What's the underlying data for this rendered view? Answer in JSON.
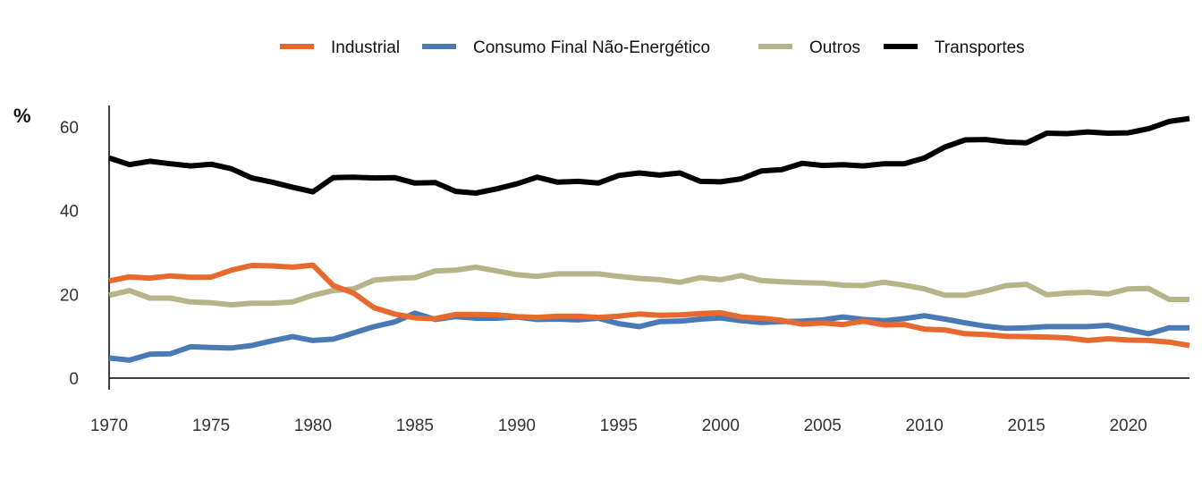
{
  "chart_data": {
    "type": "line",
    "title": "",
    "xlabel": "",
    "ylabel": "%",
    "x": [
      1970,
      1971,
      1972,
      1973,
      1974,
      1975,
      1976,
      1977,
      1978,
      1979,
      1980,
      1981,
      1982,
      1983,
      1984,
      1985,
      1986,
      1987,
      1988,
      1989,
      1990,
      1991,
      1992,
      1993,
      1994,
      1995,
      1996,
      1997,
      1998,
      1999,
      2000,
      2001,
      2002,
      2003,
      2004,
      2005,
      2006,
      2007,
      2008,
      2009,
      2010,
      2011,
      2012,
      2013,
      2014,
      2015,
      2016,
      2017,
      2018,
      2019,
      2020,
      2021,
      2022,
      2023
    ],
    "xticks": [
      "1970",
      "1975",
      "1980",
      "1985",
      "1990",
      "1995",
      "2000",
      "2005",
      "2010",
      "2015",
      "2020"
    ],
    "yticks": [
      "0",
      "20",
      "40",
      "60"
    ],
    "ylim": [
      0,
      65
    ],
    "grid": false,
    "legend_position": "top",
    "series": [
      {
        "name": "Industrial",
        "color": "#e8692e",
        "values": [
          23.2,
          24.2,
          23.9,
          24.4,
          24.1,
          24.1,
          25.8,
          26.9,
          26.8,
          26.5,
          27.0,
          22.1,
          20.3,
          16.8,
          15.3,
          14.4,
          14.2,
          15.2,
          15.2,
          15.1,
          14.7,
          14.5,
          14.8,
          14.8,
          14.5,
          14.8,
          15.3,
          15.0,
          15.1,
          15.4,
          15.6,
          14.6,
          14.3,
          13.8,
          12.9,
          13.2,
          12.8,
          13.6,
          12.7,
          12.8,
          11.7,
          11.5,
          10.6,
          10.4,
          10.0,
          9.9,
          9.8,
          9.6,
          9.0,
          9.4,
          9.1,
          9.0,
          8.6,
          7.8
        ]
      },
      {
        "name": "Consumo Final Não-Energético",
        "color": "#4a7ab5",
        "values": [
          4.8,
          4.3,
          5.7,
          5.8,
          7.5,
          7.3,
          7.2,
          7.8,
          8.9,
          9.9,
          9.0,
          9.3,
          10.8,
          12.3,
          13.4,
          15.5,
          14.0,
          14.7,
          14.3,
          14.3,
          14.6,
          14.0,
          14.1,
          13.9,
          14.3,
          13.0,
          12.3,
          13.5,
          13.6,
          14.1,
          14.4,
          13.7,
          13.3,
          13.5,
          13.6,
          13.9,
          14.6,
          14.0,
          13.7,
          14.2,
          14.9,
          14.1,
          13.2,
          12.4,
          11.9,
          12.0,
          12.3,
          12.3,
          12.3,
          12.6,
          11.6,
          10.6,
          12.0,
          12.0
        ]
      },
      {
        "name": "Outros",
        "color": "#b8b48a",
        "values": [
          19.8,
          20.9,
          19.1,
          19.1,
          18.2,
          18.0,
          17.5,
          17.9,
          17.9,
          18.2,
          19.8,
          20.9,
          21.3,
          23.4,
          23.8,
          24.0,
          25.6,
          25.8,
          26.5,
          25.6,
          24.7,
          24.3,
          24.9,
          24.9,
          24.9,
          24.3,
          23.8,
          23.5,
          22.9,
          24.0,
          23.5,
          24.5,
          23.3,
          23.0,
          22.8,
          22.7,
          22.2,
          22.1,
          22.9,
          22.2,
          21.3,
          19.8,
          19.8,
          20.8,
          22.1,
          22.4,
          19.9,
          20.3,
          20.5,
          20.1,
          21.3,
          21.4,
          18.8,
          18.8
        ]
      },
      {
        "name": "Transportes",
        "color": "#000000",
        "values": [
          52.6,
          51.0,
          51.8,
          51.2,
          50.7,
          51.1,
          50.0,
          47.8,
          46.8,
          45.6,
          44.5,
          47.9,
          48.0,
          47.8,
          47.9,
          46.6,
          46.7,
          44.6,
          44.2,
          45.2,
          46.4,
          48.0,
          46.8,
          47.0,
          46.6,
          48.4,
          49.0,
          48.5,
          49.0,
          47.0,
          46.9,
          47.6,
          49.5,
          49.8,
          51.3,
          50.8,
          51.0,
          50.7,
          51.2,
          51.2,
          52.6,
          55.2,
          56.9,
          57.0,
          56.4,
          56.2,
          58.5,
          58.4,
          58.8,
          58.5,
          58.6,
          59.6,
          61.3,
          62.0
        ]
      }
    ]
  }
}
